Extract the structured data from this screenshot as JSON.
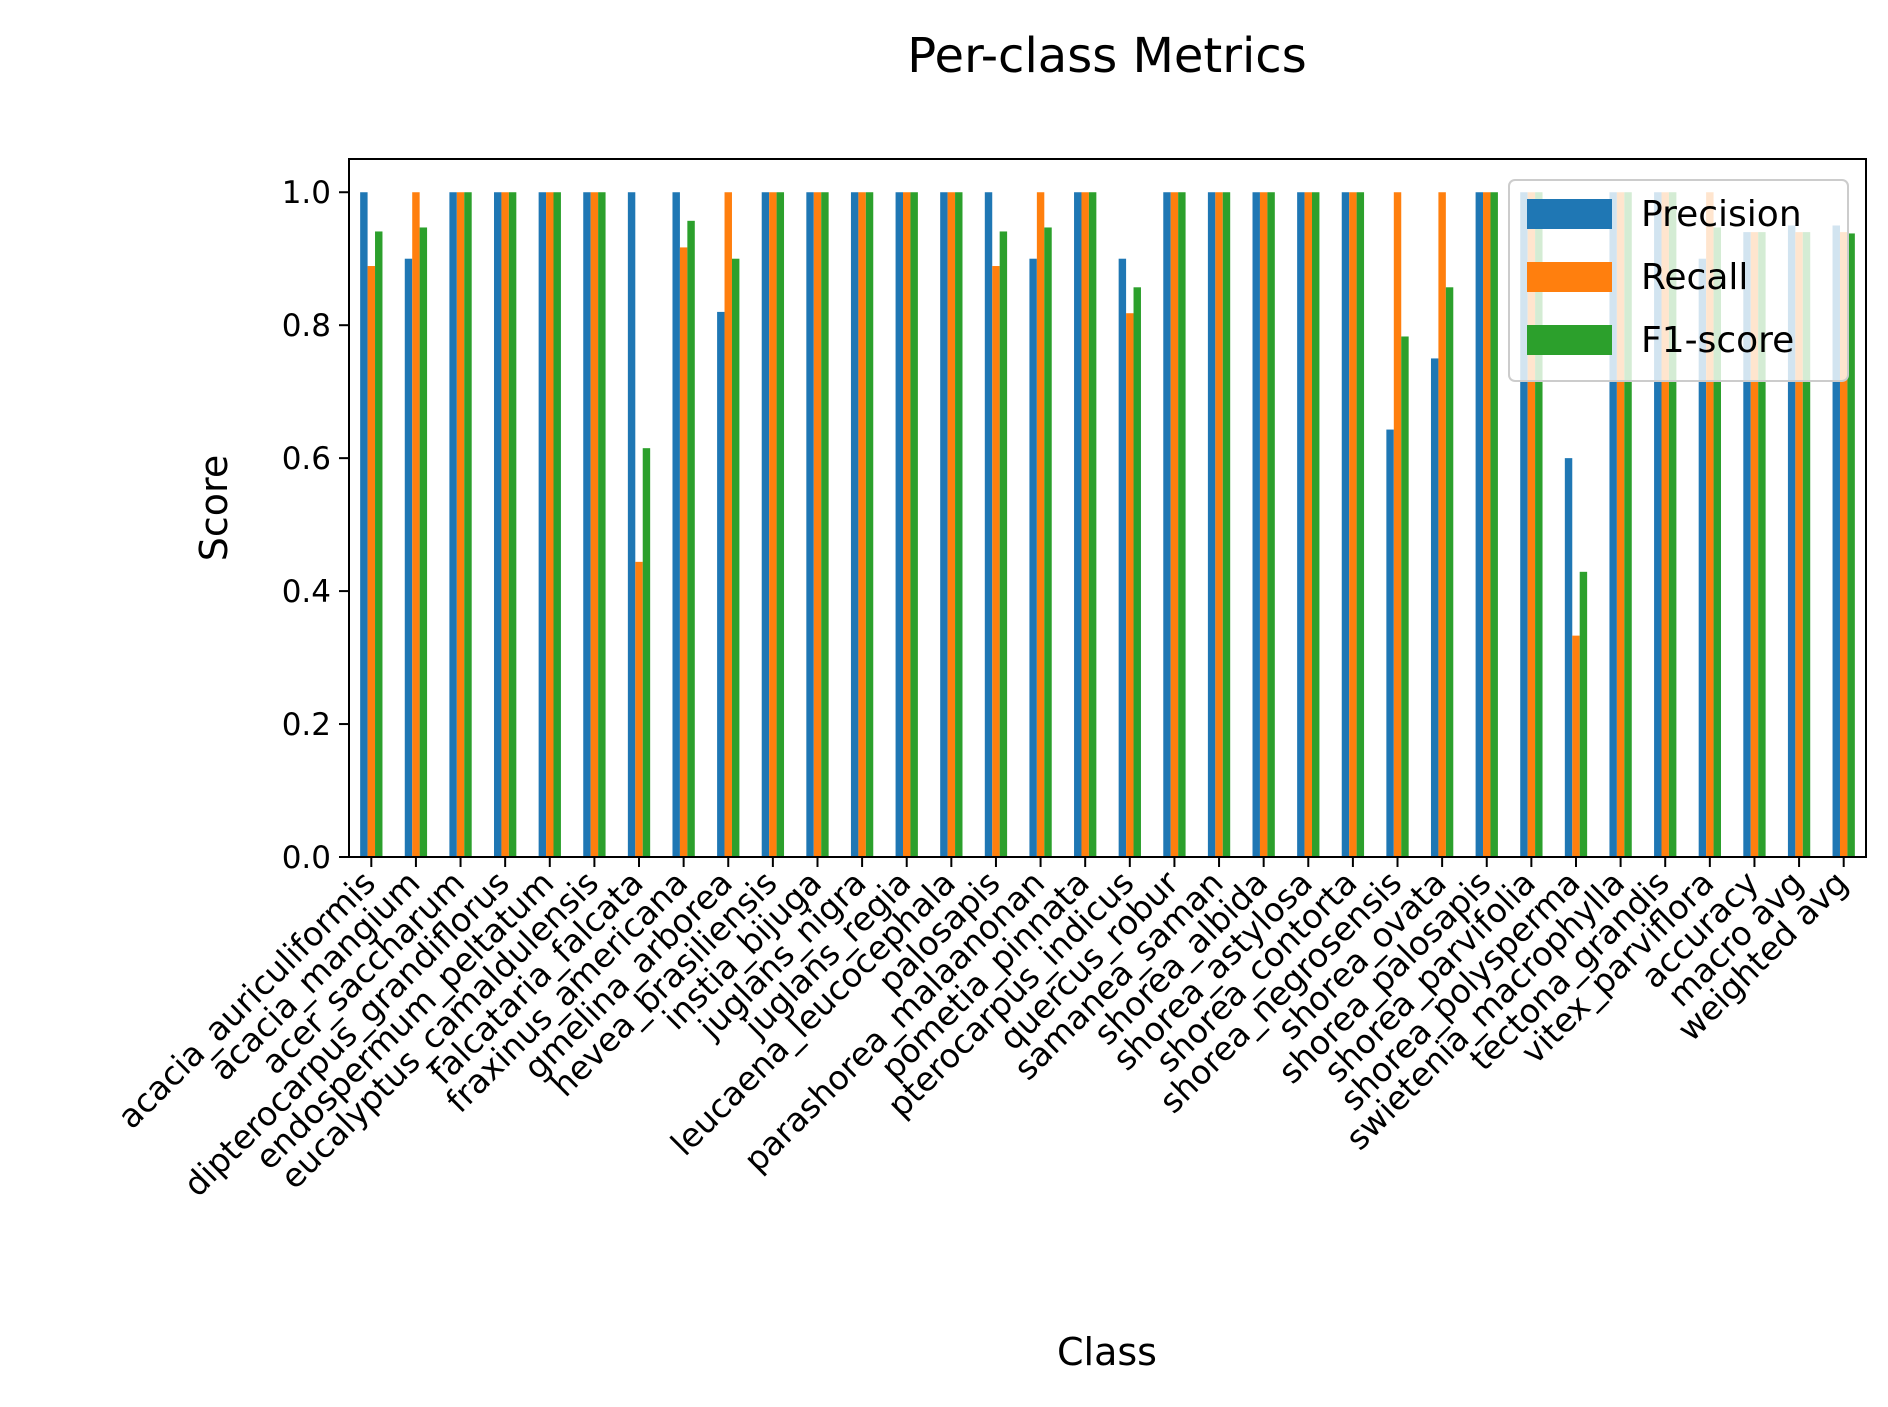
{
  "chart_data": {
    "type": "bar",
    "title": "Per-class Metrics",
    "xlabel": "Class",
    "ylabel": "Score",
    "ylim": [
      0,
      1.05
    ],
    "yticks": [
      "0.0",
      "0.2",
      "0.4",
      "0.6",
      "0.8",
      "1.0"
    ],
    "grid": false,
    "legend_position": "top-right",
    "categories": [
      "acacia_auriculiformis",
      "acacia_mangium",
      "acer_saccharum",
      "dipterocarpus_grandiflorus",
      "endospermum_peltatum",
      "eucalyptus_camaldulensis",
      "falcataria_falcata",
      "fraxinus_americana",
      "gmelina_arborea",
      "hevea_brasiliensis",
      "instia_bijuga",
      "juglans_nigra",
      "juglans_regia",
      "leucaena_leucocephala",
      "palosapis",
      "parashorea_malaanonan",
      "pometia_pinnata",
      "pterocarpus_indicus",
      "quercus_robur",
      "samanea_saman",
      "shorea_albida",
      "shorea_astylosa",
      "shorea_contorta",
      "shorea_negrosensis",
      "shorea_ovata",
      "shorea_palosapis",
      "shorea_parvifolia",
      "shorea_polysperma",
      "swietenia_macrophylla",
      "tectona_grandis",
      "vitex_parviflora",
      "accuracy",
      "macro avg",
      "weighted avg"
    ],
    "series": [
      {
        "name": "Precision",
        "color": "#1f77b4",
        "values": [
          1.0,
          0.9,
          1.0,
          1.0,
          1.0,
          1.0,
          1.0,
          1.0,
          0.82,
          1.0,
          1.0,
          1.0,
          1.0,
          1.0,
          1.0,
          0.9,
          1.0,
          0.9,
          1.0,
          1.0,
          1.0,
          1.0,
          1.0,
          0.643,
          0.75,
          1.0,
          1.0,
          0.6,
          1.0,
          1.0,
          0.9,
          0.94,
          0.95,
          0.95
        ]
      },
      {
        "name": "Recall",
        "color": "#ff7f0e",
        "values": [
          0.889,
          1.0,
          1.0,
          1.0,
          1.0,
          1.0,
          0.444,
          0.917,
          1.0,
          1.0,
          1.0,
          1.0,
          1.0,
          1.0,
          0.889,
          1.0,
          1.0,
          0.818,
          1.0,
          1.0,
          1.0,
          1.0,
          1.0,
          1.0,
          1.0,
          1.0,
          1.0,
          0.333,
          1.0,
          1.0,
          1.0,
          0.94,
          0.94,
          0.94
        ]
      },
      {
        "name": "F1-score",
        "color": "#2ca02c",
        "values": [
          0.941,
          0.947,
          1.0,
          1.0,
          1.0,
          1.0,
          0.615,
          0.957,
          0.9,
          1.0,
          1.0,
          1.0,
          1.0,
          1.0,
          0.941,
          0.947,
          1.0,
          0.857,
          1.0,
          1.0,
          1.0,
          1.0,
          1.0,
          0.783,
          0.857,
          1.0,
          1.0,
          0.429,
          1.0,
          1.0,
          0.947,
          0.94,
          0.94,
          0.938
        ]
      }
    ]
  }
}
